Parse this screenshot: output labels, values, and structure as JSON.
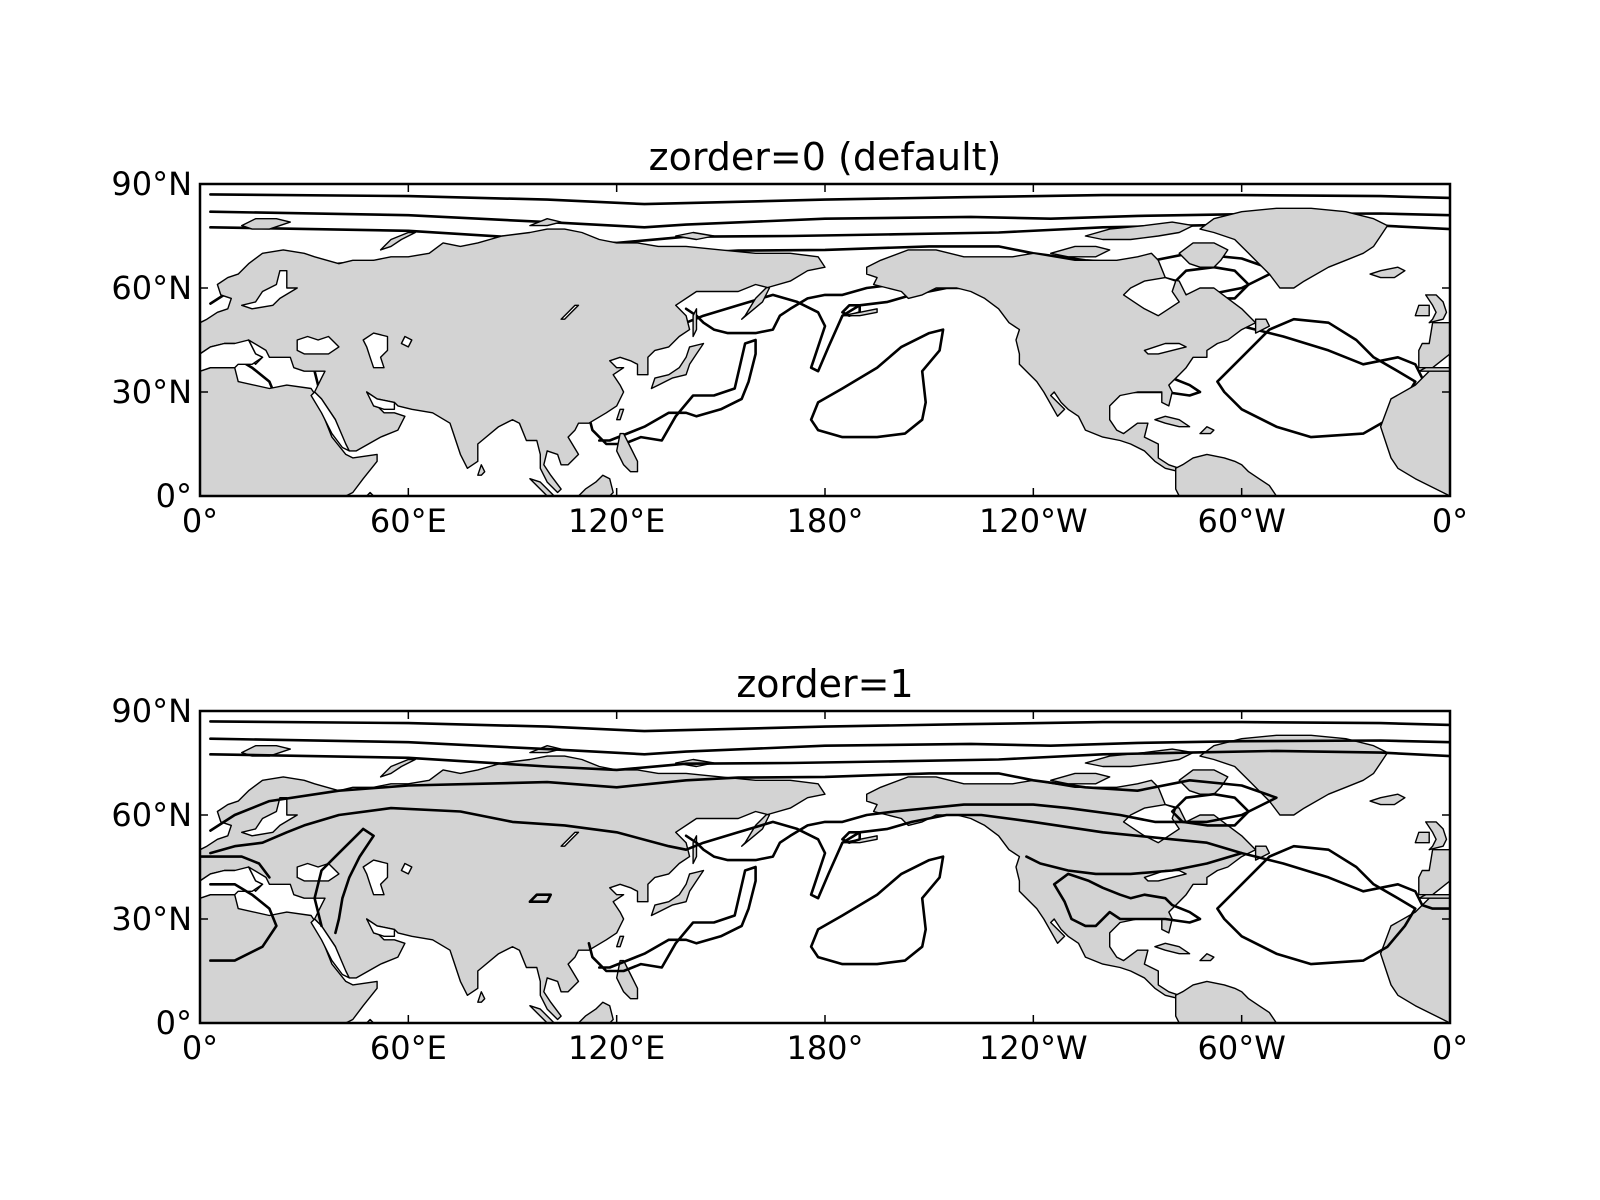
{
  "panels": [
    {
      "title": "zorder=0 (default)",
      "contour_zorder": 0,
      "x_ticks": [
        "0°",
        "60°E",
        "120°E",
        "180°",
        "120°W",
        "60°W",
        "0°"
      ],
      "y_ticks": [
        "90°N",
        "60°N",
        "30°N",
        "0°"
      ]
    },
    {
      "title": "zorder=1",
      "contour_zorder": 1,
      "x_ticks": [
        "0°",
        "60°E",
        "120°E",
        "180°",
        "120°W",
        "60°W",
        "0°"
      ],
      "y_ticks": [
        "90°N",
        "60°N",
        "30°N",
        "0°"
      ]
    }
  ],
  "map": {
    "lon_range": [
      0,
      360
    ],
    "lat_range": [
      0,
      90
    ],
    "x_tick_lons": [
      0,
      60,
      120,
      180,
      240,
      300,
      360
    ],
    "y_tick_lats": [
      90,
      60,
      30,
      0
    ],
    "land_color": "#d3d3d3",
    "contour_color": "#000000"
  }
}
